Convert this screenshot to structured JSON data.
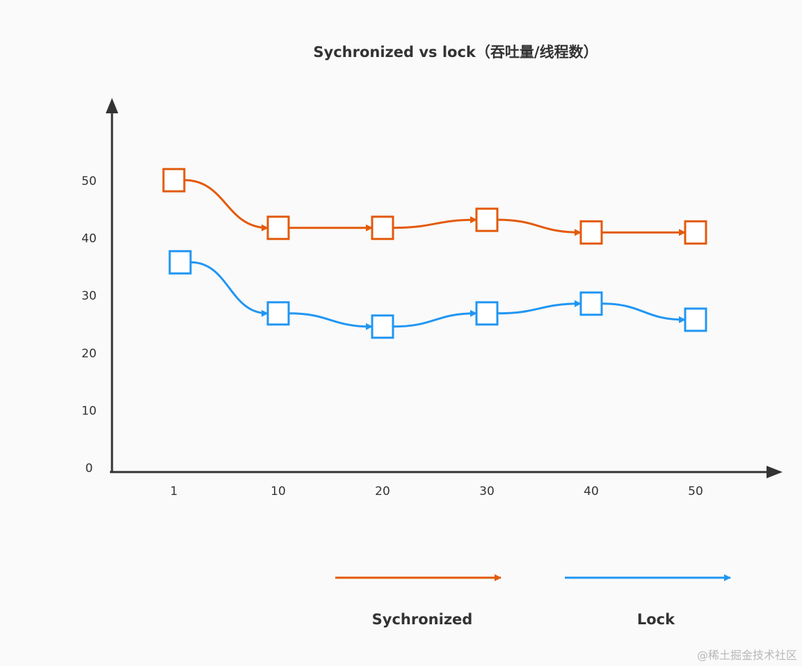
{
  "chart_data": {
    "type": "line",
    "title": "Sychronized vs lock（吞吐量/线程数）",
    "xlabel": "",
    "ylabel": "",
    "categories": [
      "1",
      "10",
      "20",
      "30",
      "40",
      "50"
    ],
    "yticks": [
      "0",
      "10",
      "20",
      "30",
      "40",
      "50"
    ],
    "ylim": [
      0,
      60
    ],
    "grid": false,
    "legend_position": "bottom",
    "series": [
      {
        "name": "Sychronized",
        "color": "#E35A0B",
        "values": [
          50.1,
          41.8,
          41.8,
          43.2,
          41.0,
          41.0
        ]
      },
      {
        "name": "Lock",
        "color": "#2196F3",
        "values": [
          35.8,
          26.9,
          24.6,
          26.9,
          28.6,
          25.8
        ]
      }
    ],
    "marker": "square"
  },
  "watermark": "@稀土掘金技术社区"
}
